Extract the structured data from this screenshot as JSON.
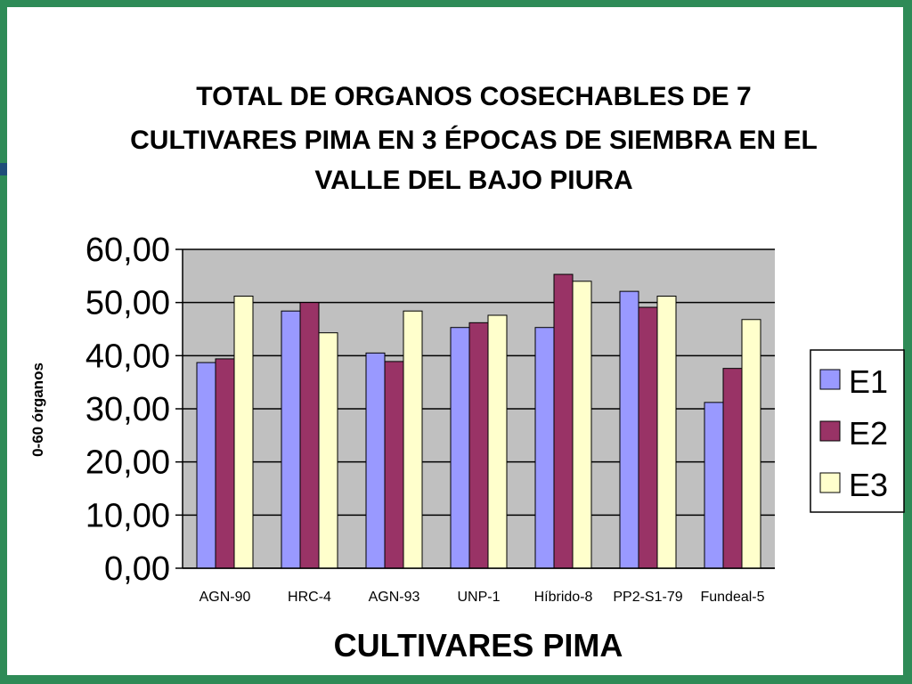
{
  "chart_data": {
    "type": "bar",
    "title_lines": [
      "TOTAL DE ORGANOS COSECHABLES DE 7",
      "CULTIVARES PIMA EN 3 ÉPOCAS DE SIEMBRA EN EL",
      "VALLE DEL BAJO PIURA"
    ],
    "xlabel": "CULTIVARES PIMA",
    "ylabel": "0-60 órganos",
    "ylim": [
      0,
      60
    ],
    "yticks": [
      "0,00",
      "10,00",
      "20,00",
      "30,00",
      "40,00",
      "50,00",
      "60,00"
    ],
    "categories": [
      "AGN-90",
      "HRC-4",
      "AGN-93",
      "UNP-1",
      "Híbrido-8",
      "PP2-S1-79",
      "Fundeal-5"
    ],
    "series": [
      {
        "name": "E1",
        "color": "#9999ff",
        "values": [
          38.7,
          48.4,
          40.5,
          45.3,
          45.3,
          52.1,
          31.2
        ]
      },
      {
        "name": "E2",
        "color": "#993366",
        "values": [
          39.4,
          50.0,
          38.9,
          46.2,
          55.3,
          49.1,
          37.6
        ]
      },
      {
        "name": "E3",
        "color": "#ffffcc",
        "values": [
          51.2,
          44.3,
          48.4,
          47.6,
          54.0,
          51.2,
          46.8
        ]
      }
    ],
    "plot_background": "#c0c0c0",
    "grid": true,
    "legend_position": "right"
  }
}
